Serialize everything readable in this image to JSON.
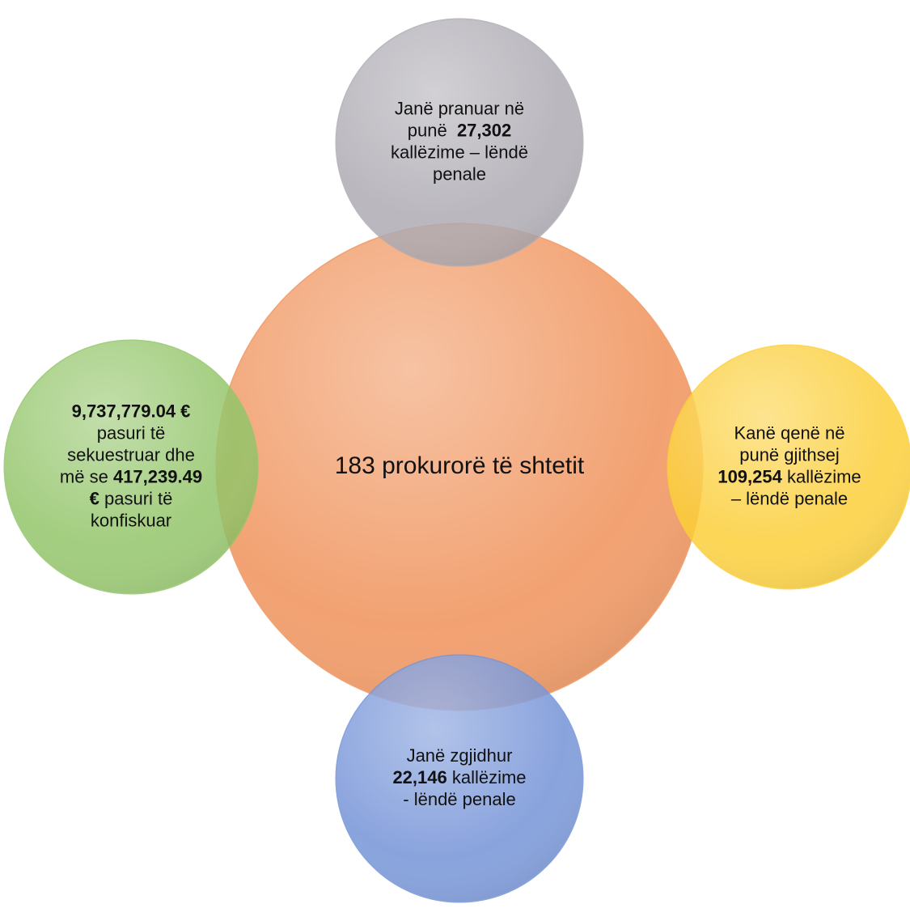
{
  "nodes": [
    {
      "name": "center",
      "color": "#f2a272",
      "lines": [
        [
          {
            "text": "183 prokurorë të shtetit",
            "bold": false
          }
        ]
      ]
    },
    {
      "name": "top",
      "color": "#aeabb3",
      "lines": [
        [
          {
            "text": "Janë pranuar në",
            "bold": false
          }
        ],
        [
          {
            "text": "punë  ",
            "bold": false
          },
          {
            "text": "27,302",
            "bold": true
          }
        ],
        [
          {
            "text": "kallëzime – lëndë",
            "bold": false
          }
        ],
        [
          {
            "text": "penale",
            "bold": false
          }
        ]
      ]
    },
    {
      "name": "right",
      "color": "#fccf38",
      "lines": [
        [
          {
            "text": "Kanë qenë në",
            "bold": false
          }
        ],
        [
          {
            "text": "punë gjithsej",
            "bold": false
          }
        ],
        [
          {
            "text": "109,254",
            "bold": true
          },
          {
            "text": " kallëzime",
            "bold": false
          }
        ],
        [
          {
            "text": "– lëndë penale",
            "bold": false
          }
        ]
      ]
    },
    {
      "name": "bottom",
      "color": "#7594d8",
      "lines": [
        [
          {
            "text": "Janë zgjidhur",
            "bold": false
          }
        ],
        [
          {
            "text": "22,146",
            "bold": true
          },
          {
            "text": " kallëzime",
            "bold": false
          }
        ],
        [
          {
            "text": "- lëndë penale",
            "bold": false
          }
        ]
      ]
    },
    {
      "name": "left",
      "color": "#93c569",
      "lines": [
        [
          {
            "text": "9,737,779.04 €",
            "bold": true
          }
        ],
        [
          {
            "text": "pasuri të",
            "bold": false
          }
        ],
        [
          {
            "text": "sekuestruar dhe",
            "bold": false
          }
        ],
        [
          {
            "text": "më se ",
            "bold": false
          },
          {
            "text": "417,239.49",
            "bold": true
          }
        ],
        [
          {
            "text": "€",
            "bold": true
          },
          {
            "text": " pasuri të",
            "bold": false
          }
        ],
        [
          {
            "text": "konfiskuar",
            "bold": false
          }
        ]
      ]
    }
  ]
}
